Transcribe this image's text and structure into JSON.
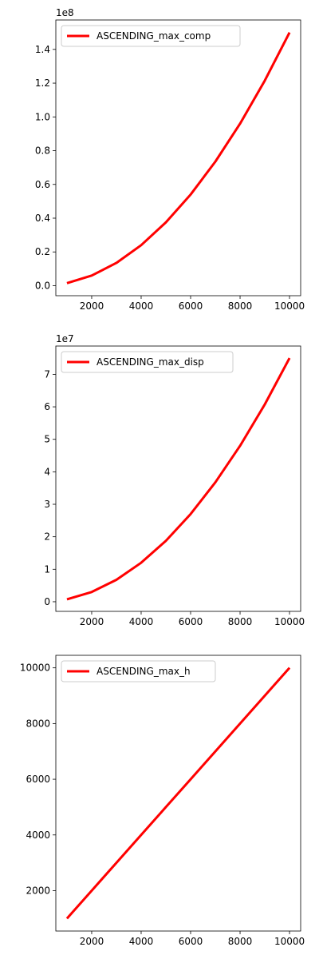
{
  "chart_data": [
    {
      "type": "line",
      "x": [
        1000,
        2000,
        3000,
        4000,
        5000,
        6000,
        7000,
        8000,
        9000,
        10000
      ],
      "series": [
        {
          "name": "ASCENDING_max_comp",
          "values": [
            1500000,
            6000000,
            13500000,
            24000000,
            37500000,
            54000000,
            73500000,
            96000000,
            121500000,
            150000000
          ],
          "color": "#ff0000"
        }
      ],
      "xticks": [
        2000,
        4000,
        6000,
        8000,
        10000
      ],
      "yticks": [
        0.0,
        0.2,
        0.4,
        0.6,
        0.8,
        1.0,
        1.2,
        1.4
      ],
      "ytick_labels": [
        "0.0",
        "0.2",
        "0.4",
        "0.6",
        "0.8",
        "1.0",
        "1.2",
        "1.4"
      ],
      "y_offset_label": "1e8",
      "y_offset_factor": 100000000,
      "xlim": [
        550,
        10450
      ],
      "ylim": [
        -5925000,
        157425000
      ],
      "legend": "upper-left",
      "grid": false
    },
    {
      "type": "line",
      "x": [
        1000,
        2000,
        3000,
        4000,
        5000,
        6000,
        7000,
        8000,
        9000,
        10000
      ],
      "series": [
        {
          "name": "ASCENDING_max_disp",
          "values": [
            750000,
            3000000,
            6750000,
            12000000,
            18750000,
            27000000,
            36750000,
            48000000,
            60750000,
            75000000
          ],
          "color": "#ff0000"
        }
      ],
      "xticks": [
        2000,
        4000,
        6000,
        8000,
        10000
      ],
      "yticks": [
        0,
        1,
        2,
        3,
        4,
        5,
        6,
        7
      ],
      "ytick_labels": [
        "0",
        "1",
        "2",
        "3",
        "4",
        "5",
        "6",
        "7"
      ],
      "y_offset_label": "1e7",
      "y_offset_factor": 10000000,
      "xlim": [
        550,
        10450
      ],
      "ylim": [
        -2962500,
        78712500
      ],
      "legend": "upper-left",
      "grid": false
    },
    {
      "type": "line",
      "x": [
        1000,
        2000,
        3000,
        4000,
        5000,
        6000,
        7000,
        8000,
        9000,
        10000
      ],
      "series": [
        {
          "name": "ASCENDING_max_h",
          "values": [
            1000,
            2000,
            3000,
            4000,
            5000,
            6000,
            7000,
            8000,
            9000,
            10000
          ],
          "color": "#ff0000"
        }
      ],
      "xticks": [
        2000,
        4000,
        6000,
        8000,
        10000
      ],
      "yticks": [
        2000,
        4000,
        6000,
        8000,
        10000
      ],
      "ytick_labels": [
        "2000",
        "4000",
        "6000",
        "8000",
        "10000"
      ],
      "y_offset_label": "",
      "y_offset_factor": 1,
      "xlim": [
        550,
        10450
      ],
      "ylim": [
        550,
        10450
      ],
      "legend": "upper-left",
      "grid": false
    }
  ]
}
